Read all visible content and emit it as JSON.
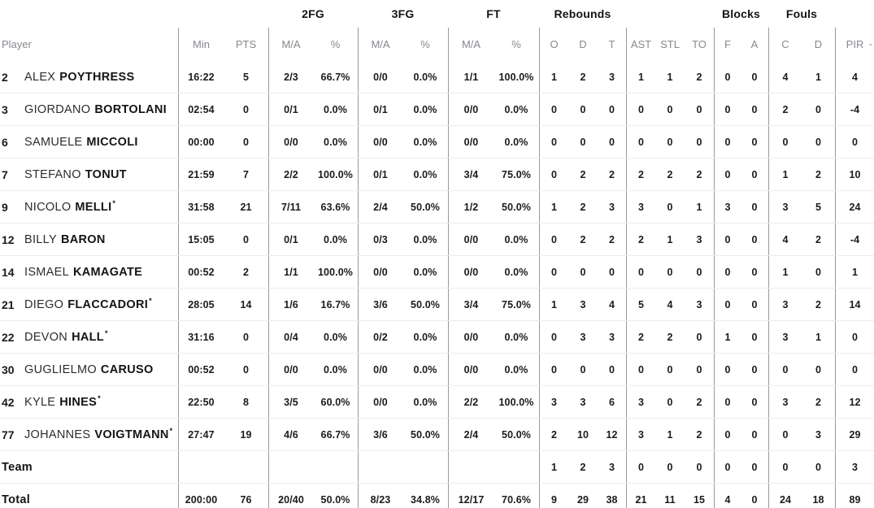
{
  "colors": {
    "text": "#1a1a1a",
    "muted_header": "#85898e",
    "vertical_divider": "#999999",
    "row_separator": "#ececec",
    "background": "#ffffff"
  },
  "groups": {
    "fg2": "2FG",
    "fg3": "3FG",
    "ft": "FT",
    "rebounds": "Rebounds",
    "blocks": "Blocks",
    "fouls": "Fouls"
  },
  "columns": {
    "player": "Player",
    "min": "Min",
    "pts": "PTS",
    "ma": "M/A",
    "pct": "%",
    "reb_o": "O",
    "reb_d": "D",
    "reb_t": "T",
    "ast": "AST",
    "stl": "STL",
    "to": "TO",
    "blk_f": "F",
    "blk_a": "A",
    "foul_c": "C",
    "foul_d": "D",
    "pir": "PIR",
    "clipped_next": "-"
  },
  "starter_mark": "*",
  "rows": [
    {
      "type": "player",
      "number": "2",
      "first": "ALEX",
      "last": "POYTHRESS",
      "starter": false,
      "cells": [
        "16:22",
        "5",
        "2/3",
        "66.7%",
        "0/0",
        "0.0%",
        "1/1",
        "100.0%",
        "1",
        "2",
        "3",
        "1",
        "1",
        "2",
        "0",
        "0",
        "4",
        "1",
        "4"
      ]
    },
    {
      "type": "player",
      "number": "3",
      "first": "GIORDANO",
      "last": "BORTOLANI",
      "starter": false,
      "cells": [
        "02:54",
        "0",
        "0/1",
        "0.0%",
        "0/1",
        "0.0%",
        "0/0",
        "0.0%",
        "0",
        "0",
        "0",
        "0",
        "0",
        "0",
        "0",
        "0",
        "2",
        "0",
        "-4"
      ]
    },
    {
      "type": "player",
      "number": "6",
      "first": "SAMUELE",
      "last": "MICCOLI",
      "starter": false,
      "cells": [
        "00:00",
        "0",
        "0/0",
        "0.0%",
        "0/0",
        "0.0%",
        "0/0",
        "0.0%",
        "0",
        "0",
        "0",
        "0",
        "0",
        "0",
        "0",
        "0",
        "0",
        "0",
        "0"
      ]
    },
    {
      "type": "player",
      "number": "7",
      "first": "STEFANO",
      "last": "TONUT",
      "starter": false,
      "cells": [
        "21:59",
        "7",
        "2/2",
        "100.0%",
        "0/1",
        "0.0%",
        "3/4",
        "75.0%",
        "0",
        "2",
        "2",
        "2",
        "2",
        "2",
        "0",
        "0",
        "1",
        "2",
        "10"
      ]
    },
    {
      "type": "player",
      "number": "9",
      "first": "NICOLO",
      "last": "MELLI",
      "starter": true,
      "cells": [
        "31:58",
        "21",
        "7/11",
        "63.6%",
        "2/4",
        "50.0%",
        "1/2",
        "50.0%",
        "1",
        "2",
        "3",
        "3",
        "0",
        "1",
        "3",
        "0",
        "3",
        "5",
        "24"
      ]
    },
    {
      "type": "player",
      "number": "12",
      "first": "BILLY",
      "last": "BARON",
      "starter": false,
      "cells": [
        "15:05",
        "0",
        "0/1",
        "0.0%",
        "0/3",
        "0.0%",
        "0/0",
        "0.0%",
        "0",
        "2",
        "2",
        "2",
        "1",
        "3",
        "0",
        "0",
        "4",
        "2",
        "-4"
      ]
    },
    {
      "type": "player",
      "number": "14",
      "first": "ISMAEL",
      "last": "KAMAGATE",
      "starter": false,
      "cells": [
        "00:52",
        "2",
        "1/1",
        "100.0%",
        "0/0",
        "0.0%",
        "0/0",
        "0.0%",
        "0",
        "0",
        "0",
        "0",
        "0",
        "0",
        "0",
        "0",
        "1",
        "0",
        "1"
      ]
    },
    {
      "type": "player",
      "number": "21",
      "first": "DIEGO",
      "last": "FLACCADORI",
      "starter": true,
      "cells": [
        "28:05",
        "14",
        "1/6",
        "16.7%",
        "3/6",
        "50.0%",
        "3/4",
        "75.0%",
        "1",
        "3",
        "4",
        "5",
        "4",
        "3",
        "0",
        "0",
        "3",
        "2",
        "14"
      ]
    },
    {
      "type": "player",
      "number": "22",
      "first": "DEVON",
      "last": "HALL",
      "starter": true,
      "cells": [
        "31:16",
        "0",
        "0/4",
        "0.0%",
        "0/2",
        "0.0%",
        "0/0",
        "0.0%",
        "0",
        "3",
        "3",
        "2",
        "2",
        "0",
        "1",
        "0",
        "3",
        "1",
        "0"
      ]
    },
    {
      "type": "player",
      "number": "30",
      "first": "GUGLIELMO",
      "last": "CARUSO",
      "starter": false,
      "cells": [
        "00:52",
        "0",
        "0/0",
        "0.0%",
        "0/0",
        "0.0%",
        "0/0",
        "0.0%",
        "0",
        "0",
        "0",
        "0",
        "0",
        "0",
        "0",
        "0",
        "0",
        "0",
        "0"
      ]
    },
    {
      "type": "player",
      "number": "42",
      "first": "KYLE",
      "last": "HINES",
      "starter": true,
      "cells": [
        "22:50",
        "8",
        "3/5",
        "60.0%",
        "0/0",
        "0.0%",
        "2/2",
        "100.0%",
        "3",
        "3",
        "6",
        "3",
        "0",
        "2",
        "0",
        "0",
        "3",
        "2",
        "12"
      ]
    },
    {
      "type": "player",
      "number": "77",
      "first": "JOHANNES",
      "last": "VOIGTMANN",
      "starter": true,
      "cells": [
        "27:47",
        "19",
        "4/6",
        "66.7%",
        "3/6",
        "50.0%",
        "2/4",
        "50.0%",
        "2",
        "10",
        "12",
        "3",
        "1",
        "2",
        "0",
        "0",
        "0",
        "3",
        "29"
      ]
    },
    {
      "type": "team",
      "label": "Team",
      "cells": [
        "",
        "",
        "",
        "",
        "",
        "",
        "",
        "",
        "1",
        "2",
        "3",
        "0",
        "0",
        "0",
        "0",
        "0",
        "0",
        "0",
        "3"
      ]
    },
    {
      "type": "total",
      "label": "Total",
      "cells": [
        "200:00",
        "76",
        "20/40",
        "50.0%",
        "8/23",
        "34.8%",
        "12/17",
        "70.6%",
        "9",
        "29",
        "38",
        "21",
        "11",
        "15",
        "4",
        "0",
        "24",
        "18",
        "89"
      ]
    }
  ]
}
